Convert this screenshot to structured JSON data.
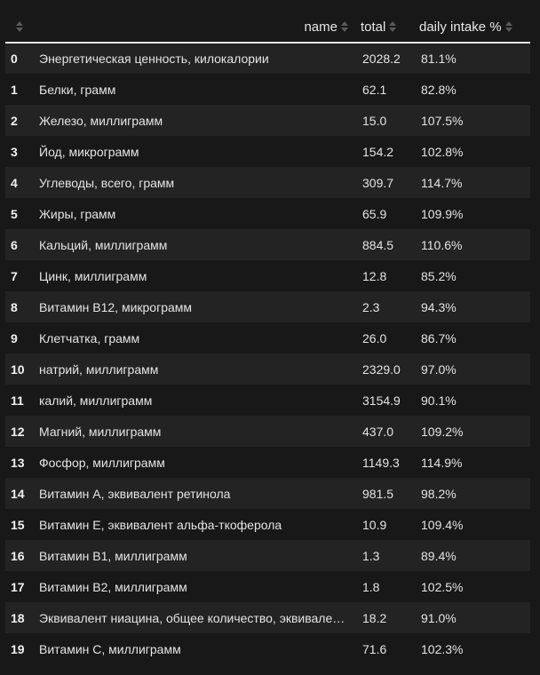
{
  "table": {
    "headers": {
      "index": "",
      "name": "name",
      "total": "total",
      "intake": "daily intake %"
    },
    "rows": [
      {
        "index": "0",
        "name": "Энергетическая ценность, килокалории",
        "total": "2028.2",
        "intake": "81.1%"
      },
      {
        "index": "1",
        "name": "Белки, грамм",
        "total": "62.1",
        "intake": "82.8%"
      },
      {
        "index": "2",
        "name": "Железо, миллиграмм",
        "total": "15.0",
        "intake": "107.5%"
      },
      {
        "index": "3",
        "name": "Йод, микрограмм",
        "total": "154.2",
        "intake": "102.8%"
      },
      {
        "index": "4",
        "name": "Углеводы, всего, грамм",
        "total": "309.7",
        "intake": "114.7%"
      },
      {
        "index": "5",
        "name": "Жиры, грамм",
        "total": "65.9",
        "intake": "109.9%"
      },
      {
        "index": "6",
        "name": "Кальций, миллиграмм",
        "total": "884.5",
        "intake": "110.6%"
      },
      {
        "index": "7",
        "name": "Цинк, миллиграмм",
        "total": "12.8",
        "intake": "85.2%"
      },
      {
        "index": "8",
        "name": "Витамин B12, микрограмм",
        "total": "2.3",
        "intake": "94.3%"
      },
      {
        "index": "9",
        "name": "Клетчатка, грамм",
        "total": "26.0",
        "intake": "86.7%"
      },
      {
        "index": "10",
        "name": "натрий, миллиграмм",
        "total": "2329.0",
        "intake": "97.0%"
      },
      {
        "index": "11",
        "name": "калий, миллиграмм",
        "total": "3154.9",
        "intake": "90.1%"
      },
      {
        "index": "12",
        "name": "Магний, миллиграмм",
        "total": "437.0",
        "intake": "109.2%"
      },
      {
        "index": "13",
        "name": "Фосфор, миллиграмм",
        "total": "1149.3",
        "intake": "114.9%"
      },
      {
        "index": "14",
        "name": "Витамин А, эквивалент ретинола",
        "total": "981.5",
        "intake": "98.2%"
      },
      {
        "index": "15",
        "name": "Витамин Е, эквивалент альфа-ткоферола",
        "total": "10.9",
        "intake": "109.4%"
      },
      {
        "index": "16",
        "name": "Витамин B1, миллиграмм",
        "total": "1.3",
        "intake": "89.4%"
      },
      {
        "index": "17",
        "name": "Витамин B2, миллиграмм",
        "total": "1.8",
        "intake": "102.5%"
      },
      {
        "index": "18",
        "name": "Эквивалент ниацина, общее количество, эквивале…",
        "total": "18.2",
        "intake": "91.0%"
      },
      {
        "index": "19",
        "name": "Витамин C, миллиграмм",
        "total": "71.6",
        "intake": "102.3%"
      }
    ]
  },
  "icons": {
    "sort": "sort-arrows-icon"
  },
  "colors": {
    "background": "#181818",
    "row_stripe": "#232323",
    "text": "#e4e4e4",
    "header_rule": "#e6e6e6",
    "sort_icon": "#5a5a5a"
  }
}
